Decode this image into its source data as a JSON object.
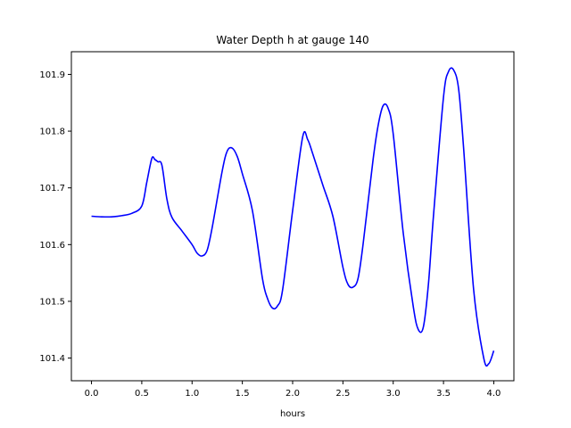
{
  "chart_data": {
    "type": "line",
    "title": "Water Depth h at gauge 140",
    "xlabel": "hours",
    "ylabel": "",
    "xlim": [
      -0.2,
      4.2
    ],
    "ylim": [
      101.36,
      101.94
    ],
    "xticks": [
      0.0,
      0.5,
      1.0,
      1.5,
      2.0,
      2.5,
      3.0,
      3.5,
      4.0
    ],
    "xtick_labels": [
      "0.0",
      "0.5",
      "1.0",
      "1.5",
      "2.0",
      "2.5",
      "3.0",
      "3.5",
      "4.0"
    ],
    "yticks": [
      101.4,
      101.5,
      101.6,
      101.7,
      101.8,
      101.9
    ],
    "ytick_labels": [
      "101.4",
      "101.5",
      "101.6",
      "101.7",
      "101.8",
      "101.9"
    ],
    "grid": false,
    "series": [
      {
        "color": "#0000ff",
        "x": [
          0.0,
          0.1,
          0.2,
          0.3,
          0.4,
          0.5,
          0.55,
          0.6,
          0.63,
          0.66,
          0.7,
          0.75,
          0.8,
          0.9,
          1.0,
          1.05,
          1.1,
          1.15,
          1.2,
          1.3,
          1.35,
          1.4,
          1.45,
          1.5,
          1.6,
          1.7,
          1.75,
          1.8,
          1.85,
          1.9,
          2.0,
          2.1,
          2.15,
          2.2,
          2.3,
          2.4,
          2.5,
          2.55,
          2.6,
          2.65,
          2.7,
          2.8,
          2.85,
          2.9,
          2.95,
          3.0,
          3.1,
          3.2,
          3.25,
          3.3,
          3.35,
          3.4,
          3.5,
          3.55,
          3.6,
          3.65,
          3.7,
          3.8,
          3.9,
          3.95,
          4.0
        ],
        "y": [
          101.65,
          101.649,
          101.649,
          101.651,
          101.655,
          101.668,
          101.71,
          101.752,
          101.75,
          101.746,
          101.74,
          101.68,
          101.648,
          101.624,
          101.6,
          101.585,
          101.58,
          101.59,
          101.63,
          101.73,
          101.765,
          101.77,
          101.755,
          101.725,
          101.66,
          101.54,
          101.505,
          101.488,
          101.492,
          101.52,
          101.66,
          101.79,
          101.785,
          101.76,
          101.705,
          101.65,
          101.56,
          101.53,
          101.525,
          101.54,
          101.6,
          101.75,
          101.81,
          101.845,
          101.84,
          101.795,
          101.62,
          101.49,
          101.45,
          101.455,
          101.53,
          101.65,
          101.86,
          101.905,
          101.908,
          101.875,
          101.77,
          101.52,
          101.4,
          101.39,
          101.413
        ]
      }
    ]
  }
}
